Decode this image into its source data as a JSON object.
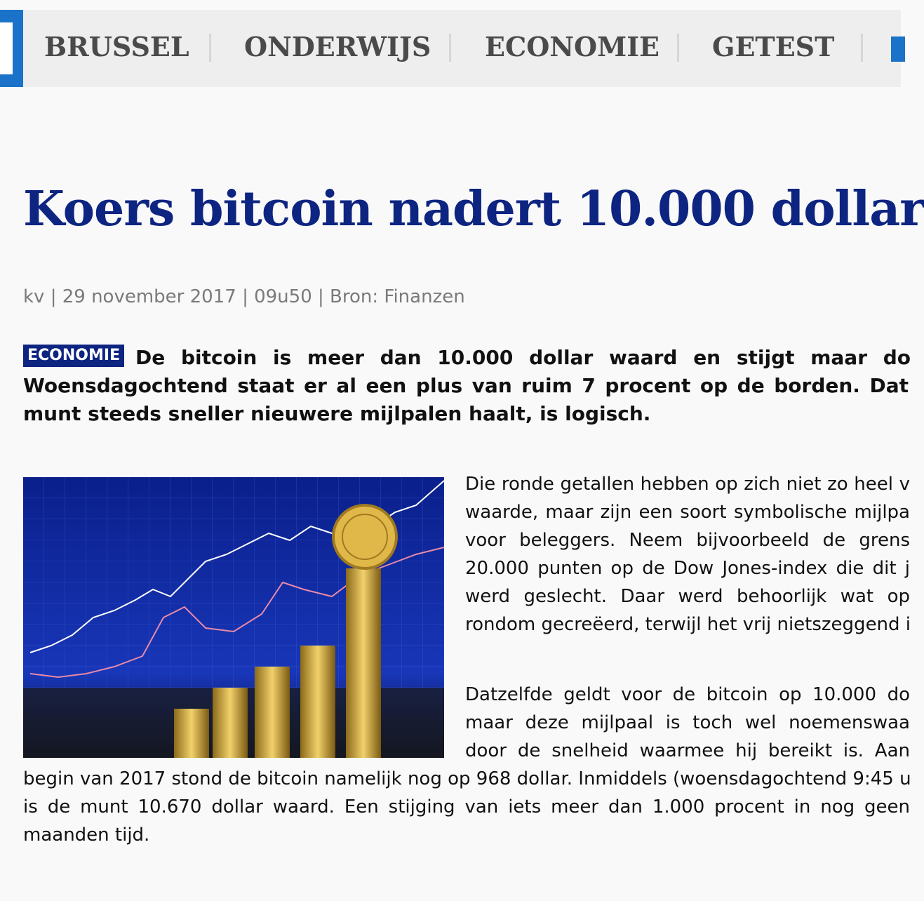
{
  "nav": {
    "items": [
      "BRUSSEL",
      "ONDERWIJS",
      "ECONOMIE",
      "GETEST"
    ]
  },
  "article": {
    "title": "Koers bitcoin nadert 10.000 dollar",
    "meta": "kv | 29 november 2017 | 09u50 | Bron: Finanzen",
    "category": "ECONOMIE",
    "lead": [
      "De bitcoin is meer dan 10.000 dollar waard en stijgt maar do",
      "Woensdagochtend staat er al een plus van ruim 7 procent op de borden. Dat",
      "munt steeds sneller nieuwere mijlpalen haalt, is logisch."
    ],
    "body": [
      [
        "Die ronde getallen hebben op zich niet zo heel v",
        "waarde, maar zijn een soort symbolische mijlpa",
        "voor beleggers. Neem bijvoorbeeld de grens",
        "20.000 punten op de Dow Jones-index die dit j",
        "werd geslecht. Daar werd behoorlijk wat op",
        "rondom gecreëerd, terwijl het vrij nietszeggend i"
      ],
      [
        "Datzelfde geldt voor de bitcoin op 10.000 do",
        "maar deze mijlpaal is toch wel noemenswaa",
        "door de snelheid waarmee hij bereikt is. Aan",
        "begin van 2017 stond de bitcoin namelijk nog op 968 dollar. Inmiddels (woensdagochtend 9:45 u",
        "is de munt 10.670 dollar waard. Een stijging van iets meer dan 1.000 procent in nog geen",
        "maanden tijd."
      ]
    ]
  }
}
